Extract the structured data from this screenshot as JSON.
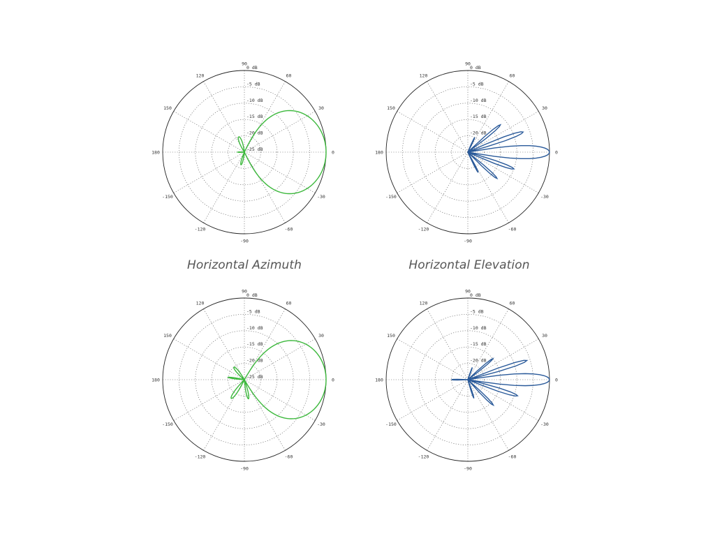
{
  "captions": {
    "left": "Horizontal Azimuth",
    "right": "Horizontal Elevation"
  },
  "chart_data": [
    {
      "type": "polar",
      "id": "top-left",
      "color": "#3cb83c",
      "angle_ticks_deg": [
        0,
        30,
        60,
        90,
        120,
        150,
        180,
        -150,
        -120,
        -90,
        -60,
        -30
      ],
      "radial_range_db": [
        -25,
        0
      ],
      "radial_ticks": [
        "0 dB",
        "-5 dB",
        "-10 dB",
        "-15 dB",
        "-20 dB",
        "-25 dB"
      ],
      "grid": true,
      "lobes": [
        {
          "center_deg": 0,
          "peak_db": 0,
          "half_width_deg": 70,
          "shape": 1.3
        },
        {
          "center_deg": 110,
          "peak_db": -20,
          "half_width_deg": 25,
          "shape": 1.6
        },
        {
          "center_deg": -105,
          "peak_db": -21,
          "half_width_deg": 20,
          "shape": 1.6
        },
        {
          "center_deg": 180,
          "peak_db": -23,
          "half_width_deg": 12,
          "shape": 1.6
        }
      ]
    },
    {
      "type": "polar",
      "id": "top-right",
      "color": "#2a5a9a",
      "angle_ticks_deg": [
        0,
        30,
        60,
        90,
        120,
        150,
        180,
        -150,
        -120,
        -90,
        -60,
        -30
      ],
      "radial_range_db": [
        -25,
        0
      ],
      "radial_ticks": [
        "0 dB",
        "-5 dB",
        "-10 dB",
        "-15 dB",
        "-20 dB"
      ],
      "grid": true,
      "lobes": [
        {
          "center_deg": 0,
          "peak_db": 0,
          "half_width_deg": 12,
          "shape": 2.0
        },
        {
          "center_deg": 20,
          "peak_db": -7,
          "half_width_deg": 6,
          "shape": 2.0
        },
        {
          "center_deg": 40,
          "peak_db": -12,
          "half_width_deg": 6,
          "shape": 2.0
        },
        {
          "center_deg": -20,
          "peak_db": -10,
          "half_width_deg": 6,
          "shape": 2.0
        },
        {
          "center_deg": -42,
          "peak_db": -13,
          "half_width_deg": 6,
          "shape": 2.0
        },
        {
          "center_deg": -63,
          "peak_db": -18,
          "half_width_deg": 6,
          "shape": 2.0
        },
        {
          "center_deg": 65,
          "peak_db": -20,
          "half_width_deg": 6,
          "shape": 2.0
        }
      ]
    },
    {
      "type": "polar",
      "id": "bottom-left",
      "color": "#3cb83c",
      "angle_ticks_deg": [
        0,
        30,
        60,
        90,
        120,
        150,
        180,
        -150,
        -120,
        -90,
        -60,
        -30
      ],
      "radial_range_db": [
        -25,
        0
      ],
      "radial_ticks": [
        "0 dB",
        "-5 dB",
        "-10 dB",
        "-15 dB",
        "-20 dB",
        "-25 dB"
      ],
      "grid": true,
      "lobes": [
        {
          "center_deg": 0,
          "peak_db": 0,
          "half_width_deg": 65,
          "shape": 1.3
        },
        {
          "center_deg": 130,
          "peak_db": -20,
          "half_width_deg": 20,
          "shape": 1.6
        },
        {
          "center_deg": 172,
          "peak_db": -20,
          "half_width_deg": 9,
          "shape": 1.6
        },
        {
          "center_deg": -125,
          "peak_db": -18,
          "half_width_deg": 16,
          "shape": 1.6
        },
        {
          "center_deg": -78,
          "peak_db": -19,
          "half_width_deg": 14,
          "shape": 1.6
        }
      ]
    },
    {
      "type": "polar",
      "id": "bottom-right",
      "color": "#2a5a9a",
      "angle_ticks_deg": [
        0,
        30,
        60,
        90,
        120,
        150,
        180,
        -150,
        -120,
        -90,
        -60,
        -30
      ],
      "radial_range_db": [
        -25,
        0
      ],
      "radial_ticks": [
        "0 dB",
        "-5 dB",
        "-10 dB",
        "-15 dB",
        "-20 dB"
      ],
      "grid": true,
      "lobes": [
        {
          "center_deg": 0,
          "peak_db": 0,
          "half_width_deg": 11,
          "shape": 2.0
        },
        {
          "center_deg": 18,
          "peak_db": -6,
          "half_width_deg": 5,
          "shape": 2.0
        },
        {
          "center_deg": 40,
          "peak_db": -15,
          "half_width_deg": 6,
          "shape": 2.0
        },
        {
          "center_deg": -18,
          "peak_db": -9,
          "half_width_deg": 6,
          "shape": 2.0
        },
        {
          "center_deg": -45,
          "peak_db": -14,
          "half_width_deg": 6,
          "shape": 2.0
        },
        {
          "center_deg": -72,
          "peak_db": -19,
          "half_width_deg": 6,
          "shape": 2.0
        },
        {
          "center_deg": 180,
          "peak_db": -20,
          "half_width_deg": 7,
          "shape": 2.0
        },
        {
          "center_deg": 70,
          "peak_db": -21,
          "half_width_deg": 6,
          "shape": 2.0
        }
      ]
    }
  ]
}
